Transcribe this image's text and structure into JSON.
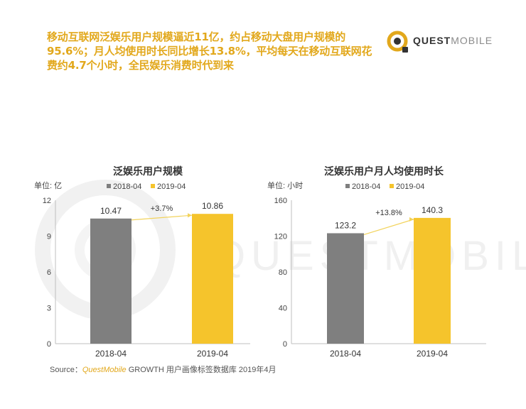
{
  "headline": "移动互联网泛娱乐用户规模逼近11亿，约占移动大盘用户规模的95.6%；月人均使用时长同比增长13.8%，平均每天在移动互联网花费约4.7个小时，全民娱乐消费时代到来",
  "brand": {
    "name_bold": "QUEST",
    "name_light": "MOBILE",
    "watermark": "QUESTMOBILE",
    "color": "#e2a81c"
  },
  "chart_data": [
    {
      "type": "bar",
      "title": "泛娱乐用户规模",
      "unit_label": "单位: 亿",
      "categories": [
        "2018-04",
        "2019-04"
      ],
      "values": [
        10.47,
        10.86
      ],
      "value_labels": [
        "10.47",
        "10.86"
      ],
      "bar_colors": [
        "#7f7f7f",
        "#f5c42c"
      ],
      "legend": [
        "2018-04",
        "2019-04"
      ],
      "legend_placement": "top",
      "growth_label": "+3.7%",
      "ylim": [
        0,
        12
      ],
      "yticks": [
        0,
        3,
        6,
        9,
        12
      ],
      "grid": false
    },
    {
      "type": "bar",
      "title": "泛娱乐用户月人均使用时长",
      "unit_label": "单位: 小时",
      "categories": [
        "2018-04",
        "2019-04"
      ],
      "values": [
        123.2,
        140.3
      ],
      "value_labels": [
        "123.2",
        "140.3"
      ],
      "bar_colors": [
        "#7f7f7f",
        "#f5c42c"
      ],
      "legend": [
        "2018-04",
        "2019-04"
      ],
      "legend_placement": "top",
      "growth_label": "+13.8%",
      "ylim": [
        0,
        160
      ],
      "yticks": [
        0,
        40,
        80,
        120,
        160
      ],
      "grid": false
    }
  ],
  "source": {
    "label": "Source：",
    "brand": "QuestMobile",
    "text": "GROWTH 用户画像标签数据库 2019年4月"
  }
}
